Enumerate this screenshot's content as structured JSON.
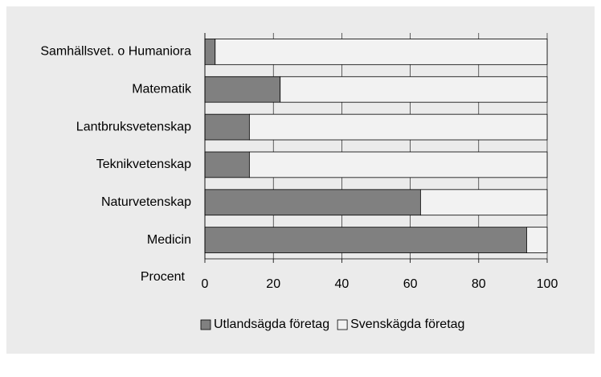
{
  "chart_data": {
    "type": "bar",
    "orientation": "horizontal",
    "stacked": true,
    "categories": [
      "Samhällsvet. o Humaniora",
      "Matematik",
      "Lantbruksvetenskap",
      "Teknikvetenskap",
      "Naturvetenskap",
      "Medicin"
    ],
    "series": [
      {
        "name": "Utlandsägda företag",
        "color": "#808080",
        "values": [
          3,
          22,
          13,
          13,
          63,
          94
        ]
      },
      {
        "name": "Svenskägda företag",
        "color": "#f2f2f2",
        "values": [
          97,
          78,
          87,
          87,
          37,
          6
        ]
      }
    ],
    "xlabel": "Procent",
    "xlim": [
      0,
      100
    ],
    "xticks": [
      0,
      20,
      40,
      60,
      80,
      100
    ],
    "grid": true,
    "legend": "bottom"
  }
}
